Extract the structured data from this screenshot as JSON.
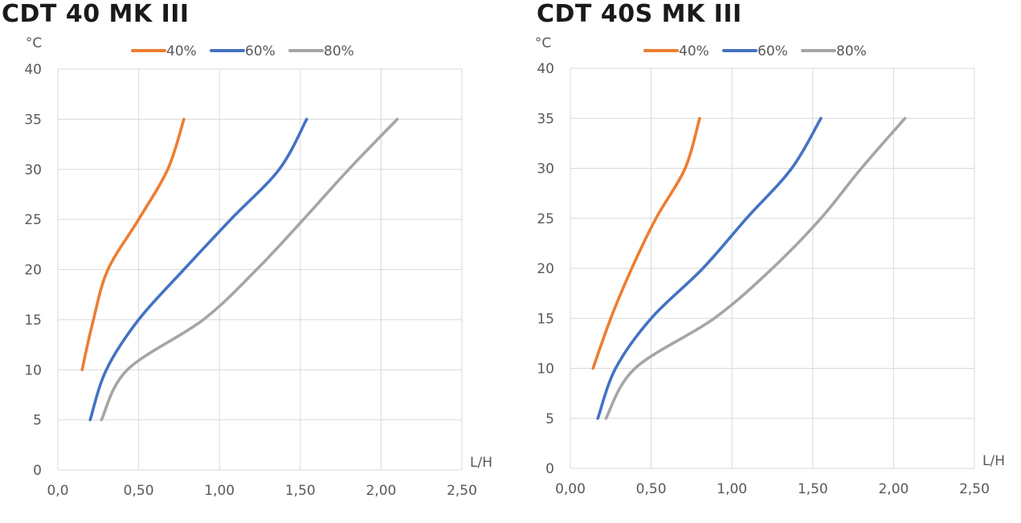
{
  "chart_data": [
    {
      "type": "line",
      "title": "CDT 40 MK III",
      "ylabel": "°C",
      "xlabel": "L/H",
      "xlim": [
        0,
        2.5
      ],
      "ylim": [
        0,
        40
      ],
      "x_ticks": [
        "0,0",
        "0,50",
        "1,00",
        "1,50",
        "2,00",
        "2,50"
      ],
      "y_ticks": [
        "0",
        "5",
        "10",
        "15",
        "20",
        "25",
        "30",
        "35",
        "40"
      ],
      "grid": true,
      "legend": "top",
      "series": [
        {
          "name": "40%",
          "color": "#ED7D31",
          "points": [
            [
              0.15,
              10
            ],
            [
              0.22,
              15
            ],
            [
              0.31,
              20
            ],
            [
              0.5,
              25
            ],
            [
              0.68,
              30
            ],
            [
              0.78,
              35
            ]
          ]
        },
        {
          "name": "60%",
          "color": "#4472C4",
          "points": [
            [
              0.2,
              5
            ],
            [
              0.3,
              10
            ],
            [
              0.5,
              15
            ],
            [
              0.78,
              20
            ],
            [
              1.07,
              25
            ],
            [
              1.37,
              30
            ],
            [
              1.54,
              35
            ]
          ]
        },
        {
          "name": "80%",
          "color": "#A5A5A5",
          "points": [
            [
              0.27,
              5
            ],
            [
              0.43,
              10
            ],
            [
              0.9,
              15
            ],
            [
              1.23,
              20
            ],
            [
              1.52,
              25
            ],
            [
              1.8,
              30
            ],
            [
              2.1,
              35
            ]
          ]
        }
      ]
    },
    {
      "type": "line",
      "title": "CDT 40S MK III",
      "ylabel": "°C",
      "xlabel": "L/H",
      "xlim": [
        0,
        2.5
      ],
      "ylim": [
        0,
        40
      ],
      "x_ticks": [
        "0,00",
        "0,50",
        "1,00",
        "1,50",
        "2,00",
        "2,50"
      ],
      "y_ticks": [
        "0",
        "5",
        "10",
        "15",
        "20",
        "25",
        "30",
        "35",
        "40"
      ],
      "grid": true,
      "legend": "top",
      "series": [
        {
          "name": "40%",
          "color": "#ED7D31",
          "points": [
            [
              0.14,
              10
            ],
            [
              0.25,
              15
            ],
            [
              0.38,
              20
            ],
            [
              0.53,
              25
            ],
            [
              0.71,
              30
            ],
            [
              0.8,
              35
            ]
          ]
        },
        {
          "name": "60%",
          "color": "#4472C4",
          "points": [
            [
              0.17,
              5
            ],
            [
              0.28,
              10
            ],
            [
              0.5,
              15
            ],
            [
              0.82,
              20
            ],
            [
              1.09,
              25
            ],
            [
              1.37,
              30
            ],
            [
              1.55,
              35
            ]
          ]
        },
        {
          "name": "80%",
          "color": "#A5A5A5",
          "points": [
            [
              0.22,
              5
            ],
            [
              0.4,
              10
            ],
            [
              0.89,
              15
            ],
            [
              1.25,
              20
            ],
            [
              1.55,
              25
            ],
            [
              1.8,
              30
            ],
            [
              2.07,
              35
            ]
          ]
        }
      ]
    }
  ]
}
